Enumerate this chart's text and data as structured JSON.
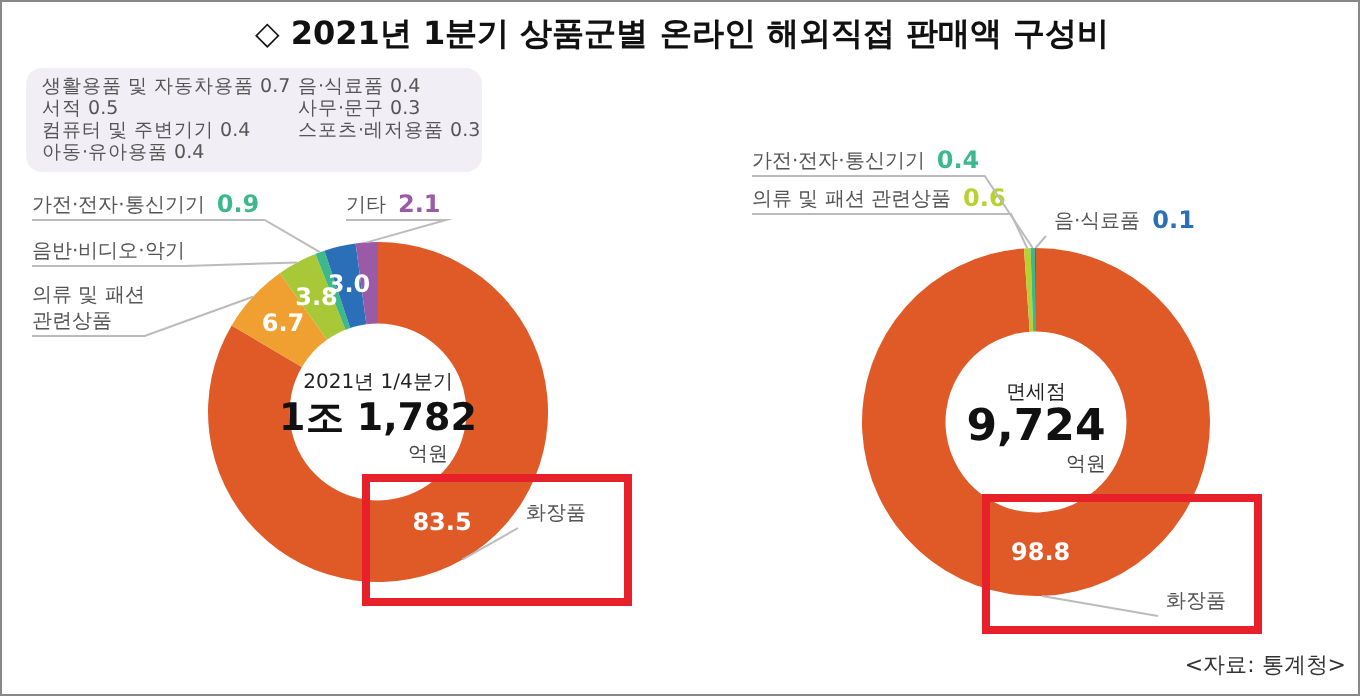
{
  "chart_data": [
    {
      "type": "donut",
      "title": "◇ 2021년 1분기 상품군별 온라인 해외직접 판매액 구성비",
      "categories": [
        "화장품",
        "의류 및 패션 관련상품",
        "음반·비디오·악기",
        "가전·전자·통신기기",
        null,
        "기타"
      ],
      "values": [
        83.5,
        6.7,
        3.8,
        0.9,
        3.0,
        2.1
      ],
      "colors": [
        "#e05a28",
        "#f0a030",
        "#a8c838",
        "#3cb88a",
        "#2a6fb8",
        "#9a5aa8"
      ],
      "value_labels": [
        "83.5",
        "6.7",
        "3.8",
        "0.9",
        "3.0",
        "2.1"
      ],
      "annotations": [
        "생활용품 및 자동차용품 0.7",
        "서적 0.5",
        "컴퓨터 및 주변기기 0.4",
        "아동·유아용품 0.4",
        "음·식료품 0.4",
        "사무·문구 0.3",
        "스포츠·레저용품 0.3",
        "2021년 1/4분기",
        "1조 1,782",
        "억원"
      ]
    },
    {
      "type": "donut",
      "categories": [
        "화장품",
        "의류 및 패션 관련상품",
        "가전·전자·통신기기",
        "음·식료품"
      ],
      "values": [
        98.8,
        0.6,
        0.4,
        0.1
      ],
      "colors": [
        "#e05a28",
        "#b8d030",
        "#3cb88a",
        "#2a6fb8"
      ],
      "value_labels": [
        "98.8",
        "0.6",
        "0.4",
        "0.1"
      ],
      "annotations": [
        "면세점",
        "9,724",
        "억원",
        "<자료: 통계청>"
      ]
    }
  ]
}
